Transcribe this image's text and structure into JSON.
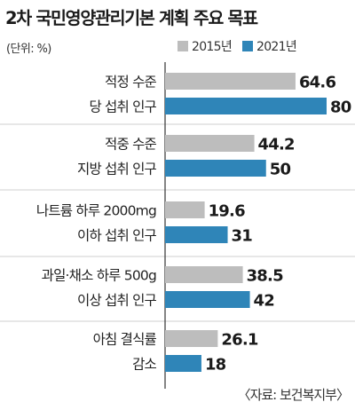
{
  "title": "2차 국민영양관리기본 계획 주요 목표",
  "unit": "(단위: %)",
  "legend": [
    {
      "label": "2015년",
      "color": "#bdbdbd"
    },
    {
      "label": "2021년",
      "color": "#2f85b8"
    }
  ],
  "source": "〈자료: 보건복지부〉",
  "chart_data": {
    "type": "bar",
    "orientation": "horizontal",
    "categories": [
      [
        "적정 수준",
        "당 섭취 인구"
      ],
      [
        "적중 수준",
        "지방 섭취 인구"
      ],
      [
        "나트륨 하루 2000mg",
        "이하 섭취 인구"
      ],
      [
        "과일·채소 하루 500g",
        "이상 섭취 인구"
      ],
      [
        "아침 결식률",
        "감소"
      ]
    ],
    "series": [
      {
        "name": "2015년",
        "color": "#bdbdbd",
        "values": [
          64.6,
          44.2,
          19.6,
          38.5,
          26.1
        ],
        "labels": [
          "64.6",
          "44.2",
          "19.6",
          "38.5",
          "26.1"
        ]
      },
      {
        "name": "2021년",
        "color": "#2f85b8",
        "values": [
          80,
          50,
          31,
          42,
          18
        ],
        "labels": [
          "80",
          "50",
          "31",
          "42",
          "18"
        ]
      }
    ],
    "xlim": [
      0,
      80
    ],
    "legend_position": "top-right"
  }
}
